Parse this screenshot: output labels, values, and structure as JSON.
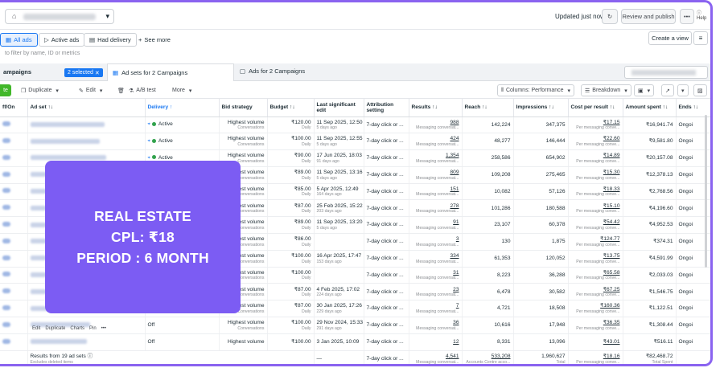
{
  "topbar": {
    "updated": "Updated just now",
    "review_publish": "Review and publish",
    "more": "•••",
    "help": "Help"
  },
  "filters": {
    "all_ads": "All ads",
    "active_ads": "Active ads",
    "had_delivery": "Had delivery",
    "see_more": "See more",
    "create_view": "Create a view"
  },
  "search_hint": "to filter by name, ID or metrics",
  "levels": {
    "campaigns": "ampaigns",
    "selected": "2 selected",
    "adsets": "Ad sets for 2 Campaigns",
    "ads": "Ads for 2 Campaigns"
  },
  "toolbar": {
    "create": "te",
    "duplicate": "Duplicate",
    "edit": "Edit",
    "ab_test": "A/B test",
    "more": "More",
    "columns": "Columns: Performance",
    "breakdown": "Breakdown"
  },
  "columns": {
    "offon": "ff/On",
    "adset": "Ad set ↑↓",
    "delivery": "Delivery ↑",
    "bid": "Bid strategy",
    "budget": "Budget ↑↓",
    "lastedit": "Last significant edit",
    "attribution": "Attribution setting",
    "results": "Results ↑↓",
    "reach": "Reach ↑↓",
    "impressions": "Impressions ↑↓",
    "cpr": "Cost per result ↑↓",
    "spent": "Amount spent ↑↓",
    "ends": "Ends ↑↓"
  },
  "rows": [
    {
      "delivery": "Active",
      "bid": "Highest volume",
      "bid_sub": "Conversations",
      "budget": "₹120.00",
      "budget_sub": "Daily",
      "edit": "11 Sep 2025, 12:50",
      "edit_sub": "5 days ago",
      "attr": "7-day click or ...",
      "results": "988",
      "results_sub": "Messaging conversat...",
      "reach": "142,224",
      "impr": "347,375",
      "cpr": "₹17.15",
      "cpr_sub": "Per messaging conve...",
      "spent": "₹16,941.74",
      "ends": "Ongoi"
    },
    {
      "delivery": "Active",
      "bid": "Highest volume",
      "bid_sub": "Conversations",
      "budget": "₹100.00",
      "budget_sub": "Daily",
      "edit": "11 Sep 2025, 12:55",
      "edit_sub": "5 days ago",
      "attr": "7-day click or ...",
      "results": "424",
      "results_sub": "Messaging conversat...",
      "reach": "48,277",
      "impr": "146,444",
      "cpr": "₹22.60",
      "cpr_sub": "Per messaging conve...",
      "spent": "₹9,581.80",
      "ends": "Ongoi"
    },
    {
      "delivery": "Active",
      "bid": "Highest volume",
      "bid_sub": "Conversations",
      "budget": "₹90.00",
      "budget_sub": "Daily",
      "edit": "17 Jun 2025, 18:03",
      "edit_sub": "91 days ago",
      "attr": "7-day click or ...",
      "results": "1,354",
      "results_sub": "Messaging conversat...",
      "reach": "258,586",
      "impr": "654,902",
      "cpr": "₹14.89",
      "cpr_sub": "Per messaging conve...",
      "spent": "₹20,157.08",
      "ends": "Ongoi"
    },
    {
      "delivery": "",
      "bid": "Highest volume",
      "bid_sub": "Conversations",
      "budget": "₹89.00",
      "budget_sub": "Daily",
      "edit": "11 Sep 2025, 13:16",
      "edit_sub": "5 days ago",
      "attr": "7-day click or ...",
      "results": "809",
      "results_sub": "Messaging conversat...",
      "reach": "109,208",
      "impr": "275,465",
      "cpr": "₹15.30",
      "cpr_sub": "Per messaging conve...",
      "spent": "₹12,378.13",
      "ends": "Ongoi"
    },
    {
      "delivery": "",
      "bid": "hest volume",
      "bid_sub": "Conversations",
      "budget": "₹85.00",
      "budget_sub": "Daily",
      "edit": "5 Apr 2025, 12:49",
      "edit_sub": "164 days ago",
      "attr": "7-day click or ...",
      "results": "151",
      "results_sub": "Messaging conversat...",
      "reach": "10,082",
      "impr": "57,126",
      "cpr": "₹18.33",
      "cpr_sub": "Per messaging conve...",
      "spent": "₹2,768.56",
      "ends": "Ongoi"
    },
    {
      "delivery": "",
      "bid": "hest volume",
      "bid_sub": "Conversations",
      "budget": "₹87.00",
      "budget_sub": "Daily",
      "edit": "25 Feb 2025, 15:22",
      "edit_sub": "203 days ago",
      "attr": "7-day click or ...",
      "results": "278",
      "results_sub": "Messaging conversat...",
      "reach": "101,286",
      "impr": "180,588",
      "cpr": "₹15.10",
      "cpr_sub": "Per messaging conve...",
      "spent": "₹4,196.60",
      "ends": "Ongoi"
    },
    {
      "delivery": "",
      "bid": "hest volume",
      "bid_sub": "Conversations",
      "budget": "₹89.00",
      "budget_sub": "Daily",
      "edit": "11 Sep 2025, 13:20",
      "edit_sub": "5 days ago",
      "attr": "7-day click or ...",
      "results": "91",
      "results_sub": "Messaging conversat...",
      "reach": "23,107",
      "impr": "60,378",
      "cpr": "₹54.42",
      "cpr_sub": "Per messaging conve...",
      "spent": "₹4,952.53",
      "ends": "Ongoi"
    },
    {
      "delivery": "",
      "bid": "hest volume",
      "bid_sub": "Conversations",
      "budget": "₹86.00",
      "budget_sub": "Daily",
      "edit": "",
      "edit_sub": "",
      "attr": "7-day click or ...",
      "results": "3",
      "results_sub": "Messaging conversat...",
      "reach": "130",
      "impr": "1,875",
      "cpr": "₹124.77",
      "cpr_sub": "Per messaging conve...",
      "spent": "₹374.31",
      "ends": "Ongoi"
    },
    {
      "delivery": "",
      "bid": "hest volume",
      "bid_sub": "Conversations",
      "budget": "₹100.00",
      "budget_sub": "Daily",
      "edit": "16 Apr 2025, 17:47",
      "edit_sub": "153 days ago",
      "attr": "7-day click or ...",
      "results": "334",
      "results_sub": "Messaging conversat...",
      "reach": "61,353",
      "impr": "120,052",
      "cpr": "₹13.75",
      "cpr_sub": "Per messaging conve...",
      "spent": "₹4,591.99",
      "ends": "Ongoi"
    },
    {
      "delivery": "",
      "bid": "hest volume",
      "bid_sub": "Conversations",
      "budget": "₹100.00",
      "budget_sub": "Daily",
      "edit": "",
      "edit_sub": "",
      "attr": "7-day click or ...",
      "results": "31",
      "results_sub": "Messaging conversat...",
      "reach": "8,223",
      "impr": "36,288",
      "cpr": "₹65.58",
      "cpr_sub": "Per messaging conve...",
      "spent": "₹2,033.03",
      "ends": "Ongoi"
    },
    {
      "delivery": "",
      "bid": "hest volume",
      "bid_sub": "Conversations",
      "budget": "₹87.00",
      "budget_sub": "Daily",
      "edit": "4 Feb 2025, 17:02",
      "edit_sub": "224 days ago",
      "attr": "7-day click or ...",
      "results": "23",
      "results_sub": "Messaging conversat...",
      "reach": "6,478",
      "impr": "30,582",
      "cpr": "₹67.25",
      "cpr_sub": "Per messaging conve...",
      "spent": "₹1,546.75",
      "ends": "Ongoi"
    },
    {
      "delivery": "",
      "bid": "hest volume",
      "bid_sub": "Conversations",
      "budget": "₹87.00",
      "budget_sub": "Daily",
      "edit": "30 Jan 2025, 17:26",
      "edit_sub": "229 days ago",
      "attr": "7-day click or ...",
      "results": "7",
      "results_sub": "Messaging conversat...",
      "reach": "4,721",
      "impr": "18,508",
      "cpr": "₹160.36",
      "cpr_sub": "Per messaging conve...",
      "spent": "₹1,122.51",
      "ends": "Ongoi"
    },
    {
      "delivery": "Off",
      "bid": "Highest volume",
      "bid_sub": "Conversations",
      "budget": "₹100.00",
      "budget_sub": "Daily",
      "edit": "29 Nov 2024, 15:33",
      "edit_sub": "291 days ago",
      "attr": "7-day click or ...",
      "results": "36",
      "results_sub": "Messaging conversat...",
      "reach": "10,616",
      "impr": "17,948",
      "cpr": "₹36.35",
      "cpr_sub": "Per messaging conve...",
      "spent": "₹1,308.44",
      "ends": "Ongoi"
    },
    {
      "delivery": "Off",
      "bid": "Highest volume",
      "bid_sub": "",
      "budget": "₹100.00",
      "budget_sub": "",
      "edit": "3 Jan 2025, 10:09",
      "edit_sub": "",
      "attr": "7-day click or ...",
      "results": "12",
      "results_sub": "",
      "reach": "8,331",
      "impr": "13,096",
      "cpr": "₹43.01",
      "cpr_sub": "",
      "spent": "₹516.11",
      "ends": "Ongoi"
    }
  ],
  "row_actions": {
    "edit": "Edit",
    "duplicate": "Duplicate",
    "charts": "Charts",
    "pin": "Pin",
    "more": "•••"
  },
  "totals": {
    "label": "Results from 19 ad sets",
    "sub": "Excludes deleted items",
    "edit": "—",
    "attr": "7-day click or ...",
    "results": "4,541",
    "results_sub": "Messaging conversat...",
    "reach": "533,208",
    "reach_sub": "Accounts Centre acco...",
    "impr": "1,960,627",
    "impr_sub": "Total",
    "cpr": "₹18.16",
    "cpr_sub": "Per messaging conve...",
    "spent": "₹82,468.72",
    "spent_sub": "Total Spent"
  },
  "overlay": {
    "line1": "REAL ESTATE",
    "line2": "CPL: ₹18",
    "line3": "PERIOD : 6 MONTH"
  }
}
